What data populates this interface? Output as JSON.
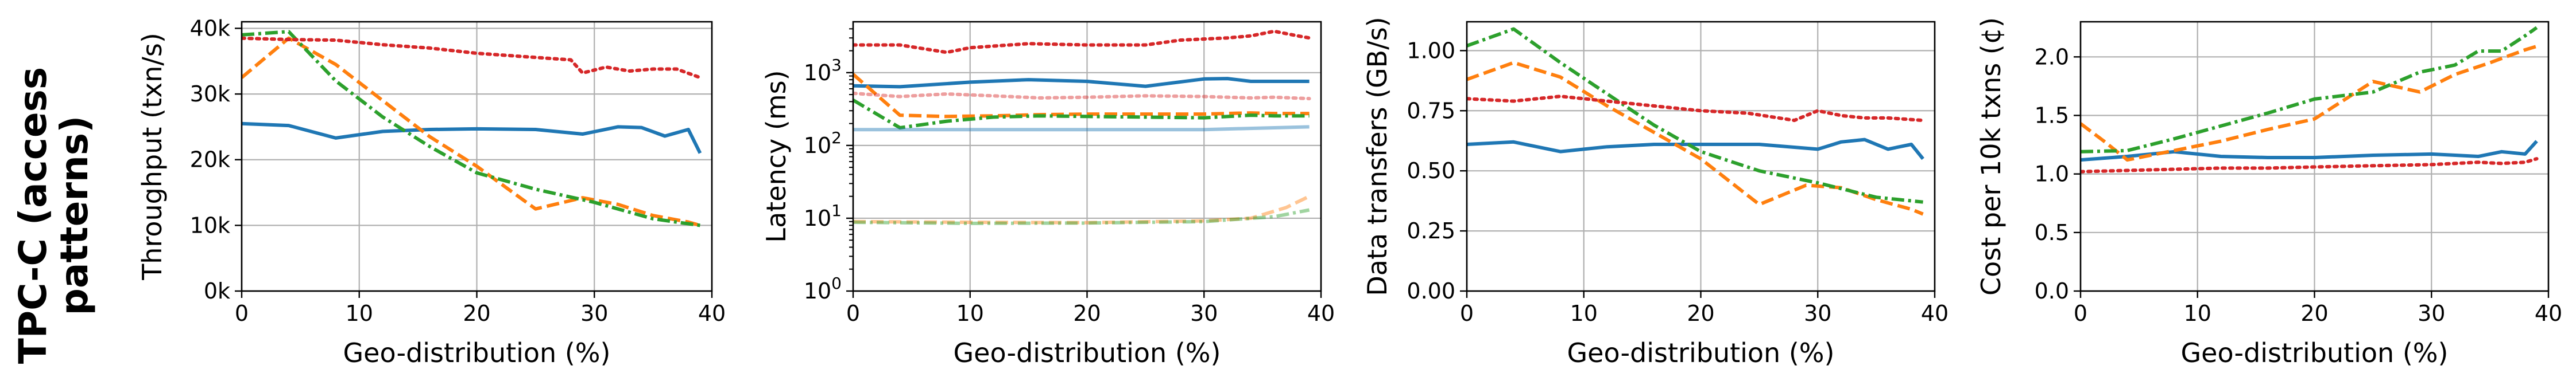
{
  "row_label": [
    "TPC-C (access",
    "patterns)"
  ],
  "chart_data": [
    {
      "type": "line",
      "xlabel": "Geo-distribution (%)",
      "ylabel": "Throughput (txn/s)",
      "xlim": [
        0,
        40
      ],
      "ylim": [
        0,
        41000
      ],
      "yscale": "linear",
      "xticks": [
        0,
        10,
        20,
        30,
        40
      ],
      "yticks": [
        0,
        10000,
        20000,
        30000,
        40000
      ],
      "ytick_labels": [
        "0k",
        "10k",
        "20k",
        "30k",
        "40k"
      ],
      "grid": true,
      "series": [
        {
          "color": "#1f77b4",
          "dash": "solid",
          "opacity": 1,
          "x": [
            0,
            4,
            8,
            12,
            16,
            20,
            25,
            29,
            32,
            34,
            36,
            38,
            39
          ],
          "y": [
            25500,
            25200,
            23300,
            24300,
            24600,
            24700,
            24600,
            23900,
            25000,
            24900,
            23600,
            24600,
            21000
          ]
        },
        {
          "color": "#ff7f0e",
          "dash": "dashed",
          "opacity": 1,
          "x": [
            0,
            4,
            8,
            12,
            16,
            20,
            25,
            29,
            32,
            35,
            38,
            39
          ],
          "y": [
            32500,
            38500,
            34500,
            29000,
            23500,
            19000,
            12500,
            14200,
            13200,
            11500,
            10500,
            10000
          ]
        },
        {
          "color": "#2ca02c",
          "dash": "dashdot",
          "opacity": 1,
          "x": [
            0,
            4,
            8,
            12,
            16,
            20,
            25,
            30,
            35,
            39
          ],
          "y": [
            39000,
            39500,
            32000,
            26500,
            22000,
            18000,
            15500,
            13500,
            11000,
            10000
          ]
        },
        {
          "color": "#d62728",
          "dash": "dotted",
          "opacity": 1,
          "x": [
            0,
            4,
            8,
            12,
            16,
            20,
            24,
            28,
            29,
            31,
            33,
            35,
            37,
            39
          ],
          "y": [
            38500,
            38300,
            38200,
            37500,
            37000,
            36200,
            35700,
            35200,
            33200,
            34100,
            33500,
            33800,
            33800,
            32500
          ]
        }
      ]
    },
    {
      "type": "line",
      "xlabel": "Geo-distribution (%)",
      "ylabel": "Latency (ms)",
      "xlim": [
        0,
        40
      ],
      "ylim": [
        1,
        5000
      ],
      "yscale": "log",
      "xticks": [
        0,
        10,
        20,
        30,
        40
      ],
      "yticks": [
        1,
        10,
        100,
        1000
      ],
      "ytick_labels": [
        "10^0",
        "10^1",
        "10^2",
        "10^3"
      ],
      "grid": true,
      "series": [
        {
          "color": "#1f77b4",
          "dash": "solid",
          "opacity": 1,
          "x": [
            0,
            4,
            10,
            15,
            20,
            25,
            30,
            32,
            34,
            36,
            39
          ],
          "y": [
            660,
            640,
            740,
            800,
            760,
            650,
            820,
            830,
            760,
            760,
            760
          ]
        },
        {
          "color": "#ff7f0e",
          "dash": "dashed",
          "opacity": 1,
          "x": [
            0,
            4,
            8,
            12,
            16,
            20,
            25,
            30,
            34,
            36,
            39
          ],
          "y": [
            950,
            260,
            250,
            255,
            265,
            270,
            270,
            270,
            280,
            275,
            275
          ]
        },
        {
          "color": "#2ca02c",
          "dash": "dashdot",
          "opacity": 1,
          "x": [
            0,
            4,
            8,
            12,
            16,
            20,
            25,
            30,
            34,
            36,
            39
          ],
          "y": [
            420,
            175,
            215,
            245,
            255,
            250,
            245,
            240,
            260,
            255,
            255
          ]
        },
        {
          "color": "#d62728",
          "dash": "dotted",
          "opacity": 1,
          "x": [
            0,
            4,
            8,
            10,
            15,
            20,
            25,
            28,
            30,
            32,
            34,
            36,
            38,
            39
          ],
          "y": [
            2400,
            2400,
            1900,
            2200,
            2500,
            2400,
            2400,
            2800,
            2900,
            3000,
            3200,
            3700,
            3200,
            3000
          ]
        },
        {
          "color": "#1f77b4",
          "dash": "solid",
          "opacity": 0.45,
          "x": [
            0,
            10,
            20,
            30,
            39
          ],
          "y": [
            165,
            165,
            165,
            165,
            180
          ]
        },
        {
          "color": "#d62728",
          "dash": "dotted",
          "opacity": 0.45,
          "x": [
            0,
            4,
            8,
            12,
            16,
            20,
            25,
            30,
            34,
            36,
            39
          ],
          "y": [
            520,
            470,
            510,
            480,
            450,
            460,
            480,
            470,
            450,
            460,
            440
          ]
        },
        {
          "color": "#ff7f0e",
          "dash": "dashed",
          "opacity": 0.45,
          "x": [
            0,
            10,
            20,
            30,
            34,
            37,
            39
          ],
          "y": [
            9,
            8.8,
            8.7,
            9.2,
            10,
            14,
            20
          ]
        },
        {
          "color": "#2ca02c",
          "dash": "dashdot",
          "opacity": 0.45,
          "x": [
            0,
            10,
            20,
            30,
            36,
            39
          ],
          "y": [
            8.8,
            8.5,
            8.6,
            9,
            10.5,
            13
          ]
        }
      ]
    },
    {
      "type": "line",
      "xlabel": "Geo-distribution (%)",
      "ylabel": "Data transfers (GB/s)",
      "xlim": [
        0,
        40
      ],
      "ylim": [
        0,
        1.12
      ],
      "yscale": "linear",
      "xticks": [
        0,
        10,
        20,
        30,
        40
      ],
      "yticks": [
        0,
        0.25,
        0.5,
        0.75,
        1.0
      ],
      "ytick_labels": [
        "0.00",
        "0.25",
        "0.50",
        "0.75",
        "1.00"
      ],
      "grid": true,
      "series": [
        {
          "color": "#1f77b4",
          "dash": "solid",
          "opacity": 1,
          "x": [
            0,
            4,
            8,
            12,
            16,
            20,
            25,
            30,
            32,
            34,
            36,
            38,
            39
          ],
          "y": [
            0.61,
            0.62,
            0.58,
            0.6,
            0.61,
            0.61,
            0.61,
            0.59,
            0.62,
            0.63,
            0.59,
            0.61,
            0.55
          ]
        },
        {
          "color": "#ff7f0e",
          "dash": "dashed",
          "opacity": 1,
          "x": [
            0,
            4,
            8,
            12,
            16,
            20,
            25,
            29,
            32,
            35,
            38,
            39
          ],
          "y": [
            0.88,
            0.95,
            0.89,
            0.77,
            0.66,
            0.55,
            0.36,
            0.44,
            0.43,
            0.38,
            0.34,
            0.32
          ]
        },
        {
          "color": "#2ca02c",
          "dash": "dashdot",
          "opacity": 1,
          "x": [
            0,
            4,
            8,
            12,
            16,
            20,
            25,
            30,
            35,
            39
          ],
          "y": [
            1.02,
            1.09,
            0.95,
            0.82,
            0.69,
            0.58,
            0.5,
            0.45,
            0.39,
            0.37
          ]
        },
        {
          "color": "#d62728",
          "dash": "dotted",
          "opacity": 1,
          "x": [
            0,
            4,
            8,
            12,
            16,
            20,
            24,
            28,
            30,
            32,
            34,
            36,
            39
          ],
          "y": [
            0.8,
            0.79,
            0.81,
            0.79,
            0.77,
            0.75,
            0.74,
            0.71,
            0.75,
            0.73,
            0.72,
            0.72,
            0.71
          ]
        }
      ]
    },
    {
      "type": "line",
      "xlabel": "Geo-distribution (%)",
      "ylabel": "Cost per 10k txns (¢)",
      "xlim": [
        0,
        40
      ],
      "ylim": [
        0,
        2.3
      ],
      "yscale": "linear",
      "xticks": [
        0,
        10,
        20,
        30,
        40
      ],
      "yticks": [
        0,
        0.5,
        1.0,
        1.5,
        2.0
      ],
      "ytick_labels": [
        "0.0",
        "0.5",
        "1.0",
        "1.5",
        "2.0"
      ],
      "grid": true,
      "series": [
        {
          "color": "#1f77b4",
          "dash": "solid",
          "opacity": 1,
          "x": [
            0,
            4,
            8,
            12,
            16,
            20,
            25,
            30,
            34,
            36,
            38,
            39
          ],
          "y": [
            1.12,
            1.15,
            1.19,
            1.15,
            1.14,
            1.14,
            1.16,
            1.17,
            1.15,
            1.19,
            1.17,
            1.28
          ]
        },
        {
          "color": "#ff7f0e",
          "dash": "dashed",
          "opacity": 1,
          "x": [
            0,
            2,
            4,
            8,
            12,
            16,
            20,
            25,
            29,
            32,
            35,
            38,
            39
          ],
          "y": [
            1.43,
            1.28,
            1.12,
            1.2,
            1.28,
            1.38,
            1.47,
            1.79,
            1.7,
            1.85,
            1.95,
            2.06,
            2.09
          ]
        },
        {
          "color": "#2ca02c",
          "dash": "dashdot",
          "opacity": 1,
          "x": [
            0,
            4,
            8,
            12,
            16,
            20,
            25,
            29,
            32,
            34,
            36,
            38,
            39
          ],
          "y": [
            1.19,
            1.2,
            1.3,
            1.41,
            1.52,
            1.64,
            1.7,
            1.87,
            1.93,
            2.05,
            2.05,
            2.18,
            2.25
          ]
        },
        {
          "color": "#d62728",
          "dash": "dotted",
          "opacity": 1,
          "x": [
            0,
            4,
            8,
            12,
            16,
            20,
            25,
            30,
            34,
            36,
            38,
            39
          ],
          "y": [
            1.02,
            1.03,
            1.04,
            1.05,
            1.05,
            1.06,
            1.07,
            1.08,
            1.1,
            1.09,
            1.1,
            1.13
          ]
        }
      ]
    }
  ]
}
